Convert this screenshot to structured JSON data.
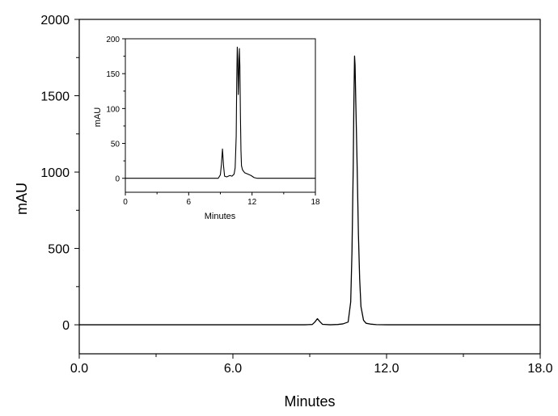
{
  "chart_data": [
    {
      "type": "line",
      "title": "",
      "xlabel": "Minutes",
      "ylabel": "mAU",
      "xlim": [
        0,
        18
      ],
      "ylim": [
        -190,
        2000
      ],
      "x_ticks": [
        0,
        6,
        12,
        18
      ],
      "x_tick_labels": [
        "0.0",
        "6.0",
        "12.0",
        "18.0"
      ],
      "y_ticks": [
        0,
        500,
        1000,
        1500,
        2000
      ],
      "y_tick_labels": [
        "0",
        "500",
        "1000",
        "1500",
        "2000"
      ],
      "grid": false,
      "series": [
        {
          "x": [
            0,
            8.8,
            9.1,
            9.2,
            9.3,
            9.4,
            9.5,
            9.8,
            10.1,
            10.3,
            10.5,
            10.6,
            10.65,
            10.7,
            10.72,
            10.74,
            10.75,
            10.77,
            10.8,
            10.85,
            10.9,
            10.95,
            11.0,
            11.1,
            11.2,
            11.4,
            11.6,
            12.0,
            18.0
          ],
          "y": [
            0,
            0,
            2,
            18,
            40,
            20,
            3,
            0,
            2,
            6,
            18,
            150,
            480,
            1050,
            1400,
            1640,
            1760,
            1700,
            1450,
            1050,
            600,
            300,
            120,
            30,
            10,
            4,
            1,
            0,
            0
          ]
        }
      ]
    },
    {
      "type": "line",
      "title": "",
      "xlabel": "Minutes",
      "ylabel": "mAU",
      "xlim": [
        0,
        18
      ],
      "ylim": [
        -20,
        200
      ],
      "x_ticks": [
        0,
        6,
        12,
        18
      ],
      "x_tick_labels": [
        "0",
        "6",
        "12",
        "18"
      ],
      "y_ticks": [
        0,
        50,
        100,
        150,
        200
      ],
      "y_tick_labels": [
        "0",
        "50",
        "100",
        "150",
        "200"
      ],
      "grid": false,
      "series": [
        {
          "x": [
            0,
            8.8,
            9.0,
            9.1,
            9.2,
            9.3,
            9.4,
            9.6,
            9.9,
            10.1,
            10.3,
            10.4,
            10.5,
            10.55,
            10.6,
            10.65,
            10.7,
            10.75,
            10.8,
            10.85,
            10.9,
            10.95,
            11.0,
            11.1,
            11.3,
            11.6,
            11.9,
            12.2,
            12.5,
            18.0
          ],
          "y": [
            0,
            0,
            5,
            20,
            42,
            18,
            3,
            2,
            4,
            3,
            6,
            15,
            60,
            140,
            188,
            170,
            120,
            150,
            186,
            160,
            90,
            40,
            18,
            12,
            8,
            6,
            4,
            1,
            0,
            0
          ]
        }
      ]
    }
  ]
}
